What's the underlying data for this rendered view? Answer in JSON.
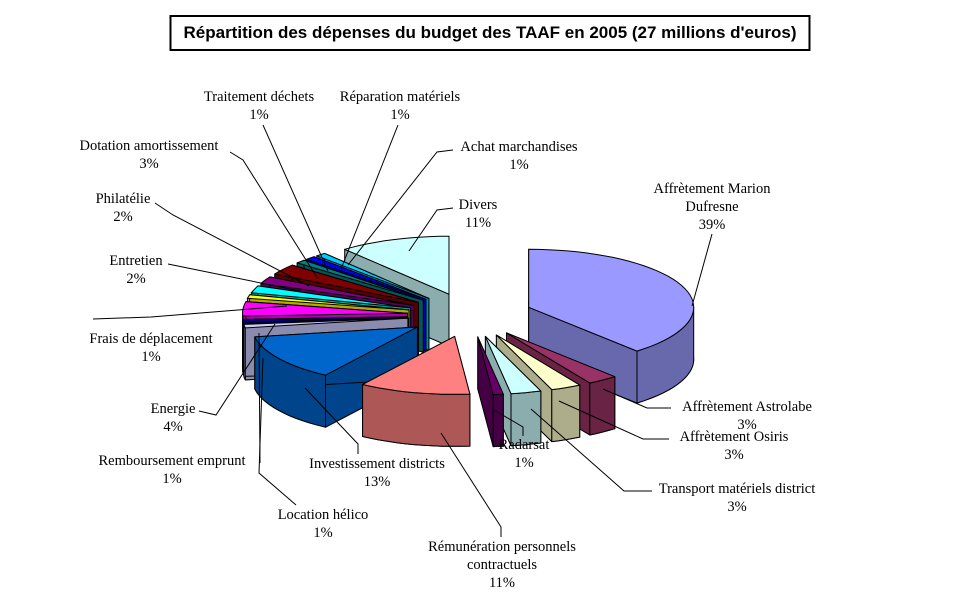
{
  "title": "Répartition des dépenses du budget des TAAF en 2005 (27 millions d'euros)",
  "chart_data": {
    "type": "pie",
    "style": "3d-exploded",
    "title": "Répartition des dépenses du budget des TAAF en 2005 (27 millions d'euros)",
    "unit": "percent",
    "legend": "none",
    "label_style": "callouts-with-percent",
    "slices": [
      {
        "label": "Affrètement Marion Dufresne",
        "value": 39,
        "pct": "39%",
        "color": "#9999FF"
      },
      {
        "label": "Affrètement Astrolabe",
        "value": 3,
        "pct": "3%",
        "color": "#993366"
      },
      {
        "label": "Affrètement Osiris",
        "value": 3,
        "pct": "3%",
        "color": "#FFFFCC"
      },
      {
        "label": "Transport matériels district",
        "value": 3,
        "pct": "3%",
        "color": "#CCFFFF"
      },
      {
        "label": "Radarsat",
        "value": 1,
        "pct": "1%",
        "color": "#660066"
      },
      {
        "label": "Rémunération personnels contractuels",
        "value": 11,
        "pct": "11%",
        "color": "#FF8080"
      },
      {
        "label": "Investissement districts",
        "value": 13,
        "pct": "13%",
        "color": "#0066CC"
      },
      {
        "label": "Location hélico",
        "value": 1,
        "pct": "1%",
        "color": "#CCCCFF"
      },
      {
        "label": "Remboursement emprunt",
        "value": 1,
        "pct": "1%",
        "color": "#000080"
      },
      {
        "label": "Energie",
        "value": 4,
        "pct": "4%",
        "color": "#FF00FF"
      },
      {
        "label": "Frais de déplacement",
        "value": 1,
        "pct": "1%",
        "color": "#FFFF00"
      },
      {
        "label": "Entretien",
        "value": 2,
        "pct": "2%",
        "color": "#00FFFF"
      },
      {
        "label": "Philatélie",
        "value": 2,
        "pct": "2%",
        "color": "#800080"
      },
      {
        "label": "Dotation amortissement",
        "value": 3,
        "pct": "3%",
        "color": "#800000"
      },
      {
        "label": "Traitement déchets",
        "value": 1,
        "pct": "1%",
        "color": "#008080"
      },
      {
        "label": "Réparation matériels",
        "value": 1,
        "pct": "1%",
        "color": "#0000FF"
      },
      {
        "label": "Achat marchandises",
        "value": 1,
        "pct": "1%",
        "color": "#00CCFF"
      },
      {
        "label": "Divers",
        "value": 11,
        "pct": "11%",
        "color": "#CCFFFF"
      }
    ]
  }
}
